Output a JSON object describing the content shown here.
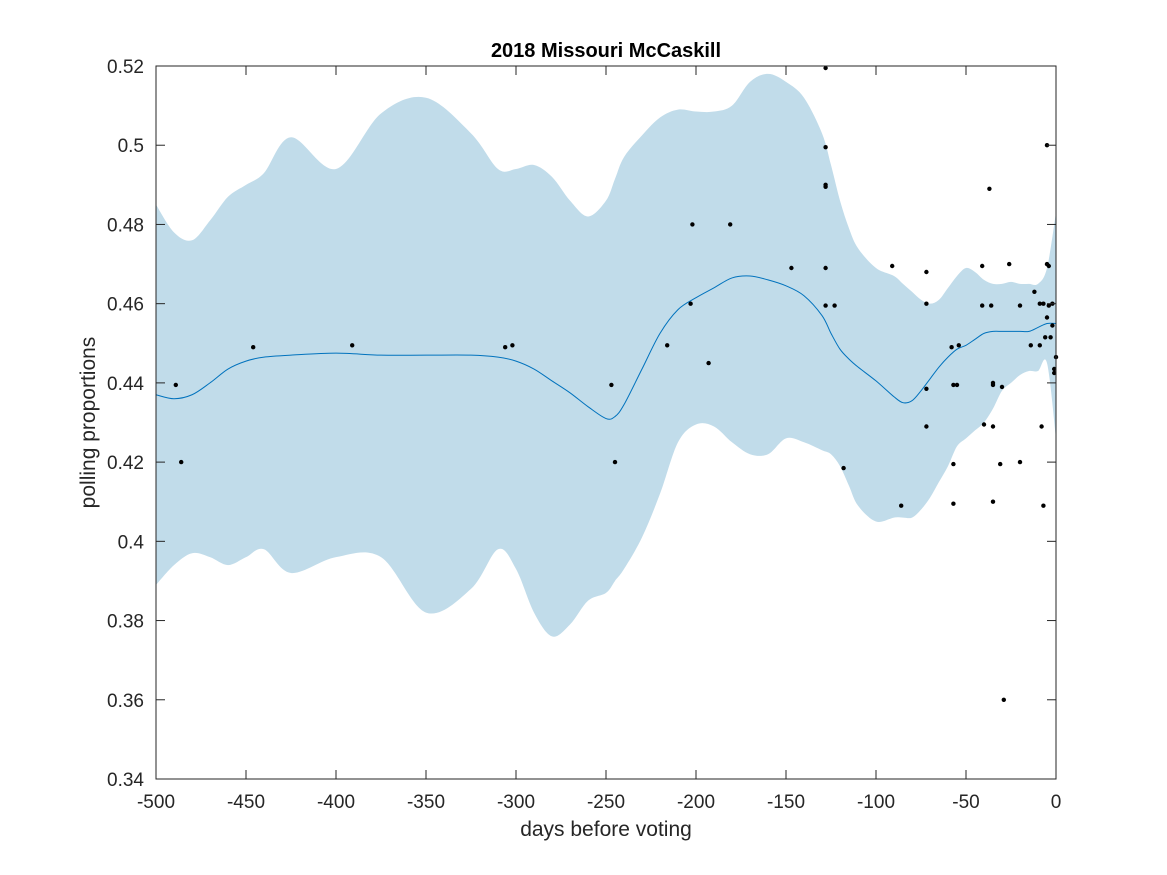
{
  "chart_data": {
    "type": "scatter",
    "title": "2018 Missouri McCaskill",
    "xlabel": "days before voting",
    "ylabel": "polling proportions",
    "xlim": [
      -500,
      0
    ],
    "ylim": [
      0.34,
      0.52
    ],
    "x_ticks": [
      -500,
      -450,
      -400,
      -350,
      -300,
      -250,
      -200,
      -150,
      -100,
      -50,
      0
    ],
    "x_tick_labels": [
      "-500",
      "-450",
      "-400",
      "-350",
      "-300",
      "-250",
      "-200",
      "-150",
      "-100",
      "-50",
      "0"
    ],
    "y_ticks": [
      0.34,
      0.36,
      0.38,
      0.4,
      0.42,
      0.44,
      0.46,
      0.48,
      0.5,
      0.52
    ],
    "y_tick_labels": [
      "0.34",
      "0.36",
      "0.38",
      "0.4",
      "0.42",
      "0.44",
      "0.46",
      "0.48",
      "0.5",
      "0.52"
    ],
    "grid": false,
    "colors": {
      "band": "#c1dcea",
      "line": "#0072bd",
      "points": "#000000",
      "axes": "#262626"
    },
    "trend": {
      "x": [
        -500,
        -490,
        -480,
        -470,
        -460,
        -450,
        -440,
        -425,
        -400,
        -375,
        -350,
        -325,
        -310,
        -300,
        -290,
        -280,
        -270,
        -260,
        -250,
        -245,
        -240,
        -230,
        -220,
        -210,
        -200,
        -190,
        -180,
        -170,
        -160,
        -150,
        -140,
        -130,
        -125,
        -120,
        -115,
        -110,
        -100,
        -90,
        -85,
        -80,
        -75,
        -70,
        -65,
        -60,
        -55,
        -50,
        -45,
        -40,
        -35,
        -30,
        -25,
        -20,
        -15,
        -10,
        -5,
        0
      ],
      "mean": [
        0.437,
        0.436,
        0.437,
        0.44,
        0.4435,
        0.4455,
        0.4465,
        0.447,
        0.4475,
        0.447,
        0.447,
        0.447,
        0.4465,
        0.4455,
        0.4435,
        0.4405,
        0.4375,
        0.434,
        0.431,
        0.4315,
        0.4345,
        0.4435,
        0.4525,
        0.4585,
        0.4615,
        0.464,
        0.4665,
        0.467,
        0.466,
        0.4645,
        0.462,
        0.457,
        0.4525,
        0.4485,
        0.446,
        0.444,
        0.4405,
        0.4365,
        0.435,
        0.4355,
        0.438,
        0.441,
        0.444,
        0.4465,
        0.4485,
        0.4495,
        0.451,
        0.4525,
        0.453,
        0.453,
        0.453,
        0.453,
        0.453,
        0.454,
        0.455,
        0.455
      ],
      "upper": [
        0.485,
        0.478,
        0.476,
        0.481,
        0.487,
        0.49,
        0.493,
        0.502,
        0.494,
        0.508,
        0.512,
        0.503,
        0.494,
        0.494,
        0.495,
        0.492,
        0.486,
        0.482,
        0.486,
        0.4915,
        0.497,
        0.5025,
        0.507,
        0.509,
        0.5085,
        0.5085,
        0.51,
        0.516,
        0.518,
        0.516,
        0.512,
        0.503,
        0.495,
        0.486,
        0.479,
        0.474,
        0.469,
        0.467,
        0.465,
        0.463,
        0.461,
        0.46,
        0.461,
        0.464,
        0.467,
        0.469,
        0.468,
        0.466,
        0.465,
        0.465,
        0.4655,
        0.465,
        0.465,
        0.465,
        0.469,
        0.483
      ],
      "lower": [
        0.389,
        0.394,
        0.397,
        0.396,
        0.394,
        0.396,
        0.398,
        0.392,
        0.396,
        0.396,
        0.382,
        0.388,
        0.398,
        0.393,
        0.382,
        0.376,
        0.379,
        0.385,
        0.387,
        0.39,
        0.393,
        0.401,
        0.412,
        0.425,
        0.4295,
        0.429,
        0.425,
        0.422,
        0.422,
        0.426,
        0.425,
        0.423,
        0.422,
        0.419,
        0.414,
        0.409,
        0.405,
        0.406,
        0.406,
        0.406,
        0.408,
        0.411,
        0.415,
        0.419,
        0.424,
        0.426,
        0.428,
        0.43,
        0.4335,
        0.438,
        0.44,
        0.442,
        0.443,
        0.443,
        0.445,
        0.426
      ]
    },
    "points": [
      [
        -489,
        0.4395
      ],
      [
        -486,
        0.42
      ],
      [
        -446,
        0.449
      ],
      [
        -391,
        0.4495
      ],
      [
        -306,
        0.449
      ],
      [
        -302,
        0.4495
      ],
      [
        -247,
        0.4395
      ],
      [
        -245,
        0.42
      ],
      [
        -216,
        0.4495
      ],
      [
        -203,
        0.46
      ],
      [
        -202,
        0.48
      ],
      [
        -193,
        0.445
      ],
      [
        -181,
        0.48
      ],
      [
        -147,
        0.469
      ],
      [
        -128,
        0.5195
      ],
      [
        -128,
        0.4995
      ],
      [
        -128,
        0.49
      ],
      [
        -128,
        0.4895
      ],
      [
        -128,
        0.469
      ],
      [
        -128,
        0.4595
      ],
      [
        -123,
        0.4595
      ],
      [
        -118,
        0.4185
      ],
      [
        -91,
        0.4695
      ],
      [
        -86,
        0.409
      ],
      [
        -72,
        0.468
      ],
      [
        -72,
        0.46
      ],
      [
        -72,
        0.4385
      ],
      [
        -72,
        0.429
      ],
      [
        -58,
        0.449
      ],
      [
        -57,
        0.4395
      ],
      [
        -57,
        0.4195
      ],
      [
        -57,
        0.4095
      ],
      [
        -55,
        0.4395
      ],
      [
        -54,
        0.4495
      ],
      [
        -41,
        0.4695
      ],
      [
        -41,
        0.4595
      ],
      [
        -40,
        0.4295
      ],
      [
        -37,
        0.489
      ],
      [
        -36,
        0.4595
      ],
      [
        -35,
        0.44
      ],
      [
        -35,
        0.4395
      ],
      [
        -35,
        0.429
      ],
      [
        -35,
        0.41
      ],
      [
        -31,
        0.4195
      ],
      [
        -30,
        0.439
      ],
      [
        -29,
        0.36
      ],
      [
        -26,
        0.47
      ],
      [
        -20,
        0.4595
      ],
      [
        -20,
        0.42
      ],
      [
        -14,
        0.4495
      ],
      [
        -12,
        0.463
      ],
      [
        -9,
        0.46
      ],
      [
        -9,
        0.4495
      ],
      [
        -8,
        0.429
      ],
      [
        -7,
        0.409
      ],
      [
        -7,
        0.46
      ],
      [
        -6,
        0.4515
      ],
      [
        -5,
        0.5
      ],
      [
        -5,
        0.47
      ],
      [
        -5,
        0.4565
      ],
      [
        -4,
        0.4695
      ],
      [
        -4,
        0.4595
      ],
      [
        -3,
        0.4515
      ],
      [
        -2,
        0.4545
      ],
      [
        -2,
        0.46
      ],
      [
        -1,
        0.4435
      ],
      [
        -1,
        0.4425
      ],
      [
        0,
        0.4465
      ]
    ]
  }
}
